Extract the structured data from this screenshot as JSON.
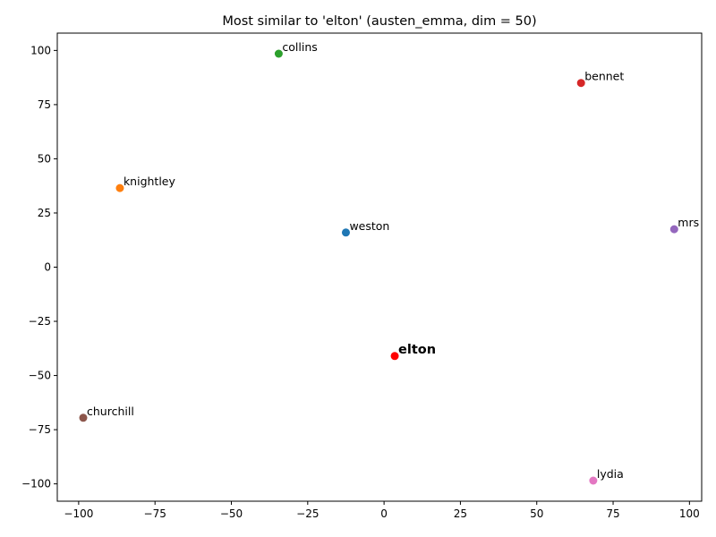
{
  "chart_data": {
    "type": "scatter",
    "title": "Most similar to 'elton' (austen_emma, dim = 50)",
    "xlabel": "",
    "ylabel": "",
    "xlim": [
      -107,
      104
    ],
    "ylim": [
      -108,
      108
    ],
    "xticks": [
      -100,
      -75,
      -50,
      -25,
      0,
      25,
      50,
      75,
      100
    ],
    "yticks": [
      100,
      75,
      50,
      25,
      0,
      -25,
      -50,
      -75,
      -100
    ],
    "grid": false,
    "points": [
      {
        "label": "weston",
        "x": -12.5,
        "y": 16,
        "color": "#1f77b4",
        "highlight": false
      },
      {
        "label": "knightley",
        "x": -86.5,
        "y": 36.5,
        "color": "#ff7f0e",
        "highlight": false
      },
      {
        "label": "collins",
        "x": -34.5,
        "y": 98.5,
        "color": "#2ca02c",
        "highlight": false
      },
      {
        "label": "bennet",
        "x": 64.5,
        "y": 85,
        "color": "#d62728",
        "highlight": false
      },
      {
        "label": "mrs",
        "x": 95,
        "y": 17.5,
        "color": "#9467bd",
        "highlight": false
      },
      {
        "label": "churchill",
        "x": -98.5,
        "y": -69.5,
        "color": "#8c564b",
        "highlight": false
      },
      {
        "label": "lydia",
        "x": 68.5,
        "y": -98.5,
        "color": "#e377c2",
        "highlight": false
      },
      {
        "label": "elton",
        "x": 3.5,
        "y": -41,
        "color": "#ff0000",
        "highlight": true
      }
    ]
  }
}
